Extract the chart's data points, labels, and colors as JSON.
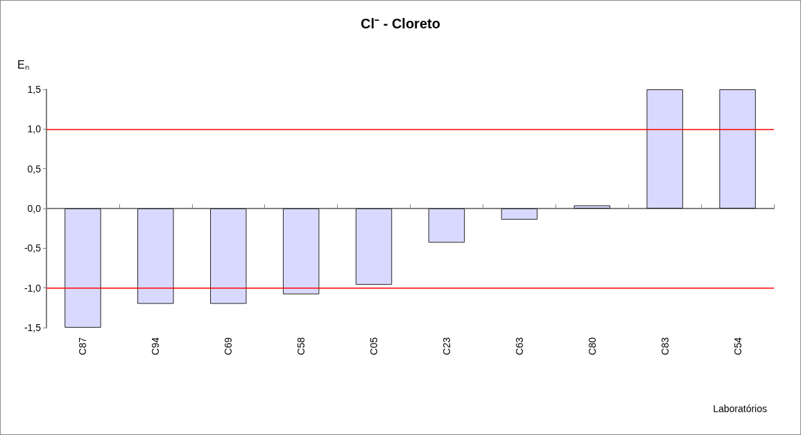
{
  "chart_data": {
    "type": "bar",
    "title": "Cl⁻ - Cloreto",
    "ylabel": "Eₙ",
    "xlabel": "Laboratórios",
    "categories": [
      "C87",
      "C94",
      "C69",
      "C58",
      "C05",
      "C23",
      "C63",
      "C80",
      "C83",
      "C54"
    ],
    "values": [
      -1.5,
      -1.2,
      -1.2,
      -1.08,
      -0.96,
      -0.43,
      -0.14,
      0.04,
      1.5,
      1.5
    ],
    "color": "#d9d9ff",
    "ylim": [
      -1.5,
      1.5
    ],
    "yticks": [
      {
        "value": -1.5,
        "label": "-1,5"
      },
      {
        "value": -1.0,
        "label": "-1,0"
      },
      {
        "value": -0.5,
        "label": "-0,5"
      },
      {
        "value": 0,
        "label": "0,0"
      },
      {
        "value": 0.5,
        "label": "0,5"
      },
      {
        "value": 1.0,
        "label": "1,0"
      },
      {
        "value": 1.5,
        "label": "1,5"
      }
    ],
    "ref_lines": [
      {
        "axis": "y",
        "value": 1.0,
        "label": null,
        "color": "#ff0000"
      },
      {
        "axis": "y",
        "value": -1.0,
        "label": null,
        "color": "#ff0000"
      }
    ],
    "grid": false
  }
}
